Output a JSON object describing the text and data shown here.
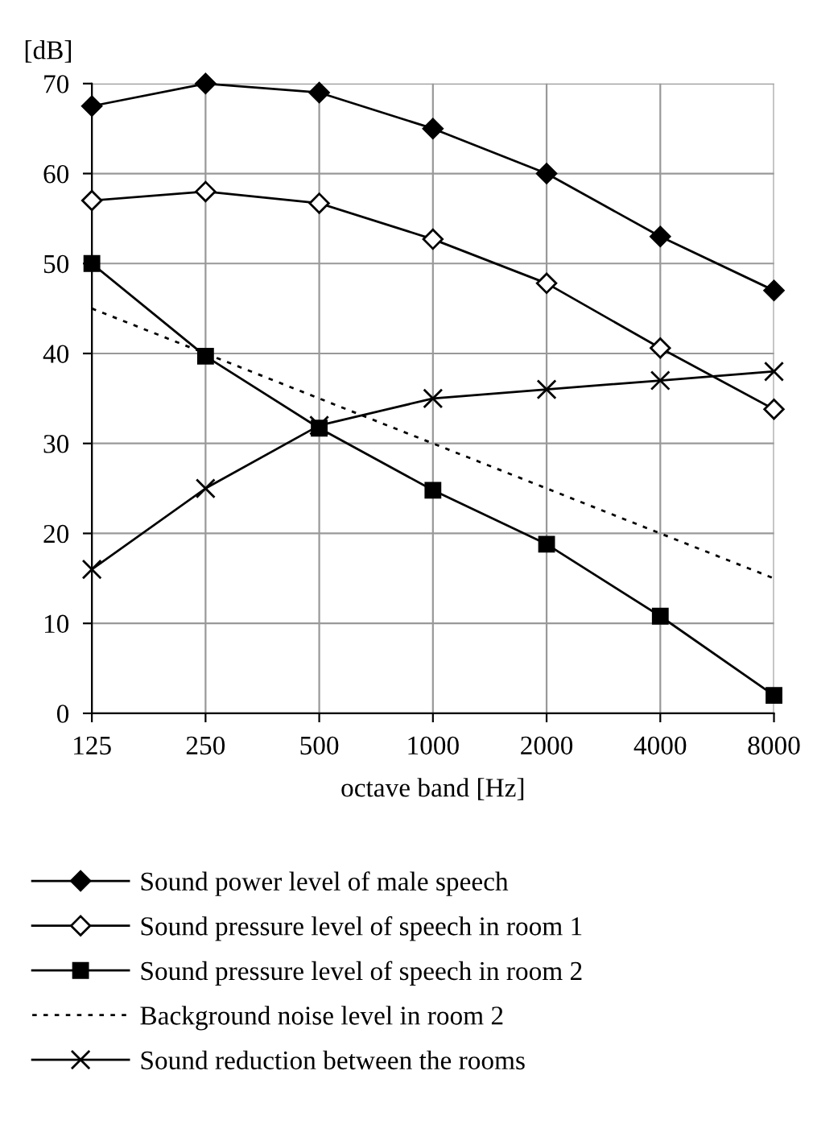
{
  "chart_data": {
    "type": "line",
    "xlabel": "octave band [Hz]",
    "ylabel": "[dB]",
    "categories": [
      "125",
      "250",
      "500",
      "1000",
      "2000",
      "4000",
      "8000"
    ],
    "series": [
      {
        "name": "Sound power level of male speech",
        "color": "#000000",
        "marker": "diamond",
        "line_style": "solid",
        "values": [
          67.5,
          70,
          69,
          65,
          60,
          53,
          47
        ]
      },
      {
        "name": "Sound pressure level of speech in room 1",
        "color": "#000000",
        "marker": "diamond",
        "line_style": "solid",
        "values": [
          57,
          58,
          56.7,
          52.7,
          47.8,
          40.6,
          33.8
        ]
      },
      {
        "name": "Sound pressure level of speech in room 2",
        "color": "#000000",
        "marker": "square",
        "line_style": "solid",
        "values": [
          50,
          39.7,
          31.7,
          24.8,
          18.8,
          10.8,
          2
        ]
      },
      {
        "name": "Background noise level in room 2",
        "color": "#000000",
        "marker": "none",
        "line_style": "dotted",
        "values": [
          45,
          40,
          35,
          30,
          25,
          20,
          15
        ]
      },
      {
        "name": "Sound reduction between the rooms",
        "color": "#000000",
        "marker": "cross",
        "line_style": "solid",
        "values": [
          16,
          25,
          32,
          35,
          36,
          37,
          38
        ]
      }
    ],
    "ylim": [
      0,
      70
    ],
    "yticks": [
      0,
      10,
      20,
      30,
      40,
      50,
      60,
      70
    ],
    "grid": true,
    "legend": "bottom"
  }
}
